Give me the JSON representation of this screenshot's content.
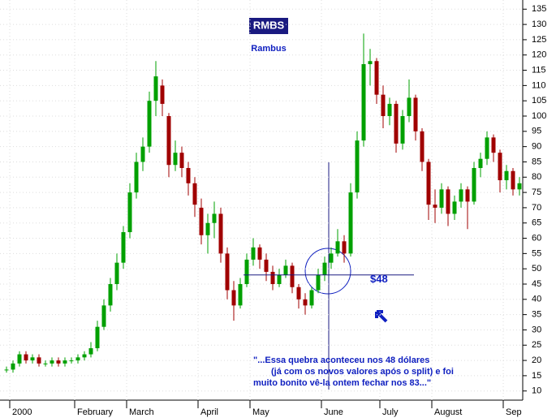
{
  "chart_data": {
    "type": "candlestick",
    "title": "RMBS",
    "subtitle": "Rambus",
    "categories": [
      null,
      "2000",
      null,
      null,
      null,
      null,
      null,
      null,
      null,
      null,
      null,
      "February",
      null,
      null,
      null,
      null,
      null,
      null,
      null,
      "March",
      null,
      null,
      null,
      null,
      null,
      null,
      null,
      null,
      null,
      null,
      "April",
      null,
      null,
      null,
      null,
      null,
      null,
      null,
      "May",
      null,
      null,
      null,
      null,
      null,
      null,
      null,
      null,
      null,
      null,
      "June",
      null,
      null,
      null,
      null,
      null,
      null,
      null,
      null,
      "July",
      null,
      null,
      null,
      null,
      null,
      null,
      null,
      "August",
      null,
      null,
      null,
      null,
      null,
      null,
      null,
      null,
      null,
      null,
      "Sep",
      null,
      null
    ],
    "open": [
      17,
      17,
      19,
      22,
      20,
      21,
      19,
      19,
      20,
      19,
      20,
      20,
      21,
      22,
      24,
      31,
      38,
      45,
      52,
      62,
      75,
      85,
      90,
      105,
      110,
      100,
      84,
      88,
      83,
      78,
      70,
      61,
      65,
      68,
      55,
      43,
      38,
      45,
      53,
      57,
      53,
      49,
      45,
      48,
      51,
      44,
      40,
      38,
      43,
      48,
      52,
      55,
      59,
      55,
      75,
      92,
      117,
      118,
      107,
      100,
      104,
      91,
      100,
      106,
      95,
      85,
      71,
      70,
      76,
      68,
      72,
      76,
      72,
      83,
      86,
      93,
      88,
      79,
      82,
      76
    ],
    "high": [
      18,
      20,
      23,
      23,
      22,
      22,
      20,
      21,
      21,
      21,
      21,
      22,
      23,
      26,
      33,
      40,
      47,
      55,
      64,
      78,
      88,
      93,
      108,
      118,
      112,
      101,
      92,
      90,
      85,
      80,
      73,
      68,
      72,
      70,
      57,
      46,
      47,
      55,
      60,
      58,
      55,
      51,
      50,
      53,
      52,
      45,
      42,
      44,
      50,
      54,
      57,
      63,
      61,
      78,
      95,
      127,
      122,
      119,
      110,
      106,
      105,
      102,
      112,
      107,
      96,
      86,
      76,
      78,
      77,
      74,
      78,
      77,
      85,
      88,
      95,
      94,
      89,
      84,
      83,
      80
    ],
    "low": [
      16,
      16,
      18,
      19,
      19,
      18,
      18,
      18,
      18,
      18,
      19,
      19,
      20,
      21,
      23,
      30,
      36,
      43,
      50,
      60,
      73,
      82,
      88,
      100,
      100,
      80,
      82,
      80,
      74,
      67,
      58,
      55,
      60,
      52,
      40,
      33,
      37,
      44,
      51,
      50,
      46,
      43,
      44,
      47,
      42,
      37,
      35,
      37,
      42,
      46,
      50,
      54,
      52,
      54,
      73,
      90,
      110,
      104,
      96,
      97,
      88,
      89,
      98,
      92,
      82,
      66,
      65,
      68,
      64,
      66,
      70,
      63,
      71,
      80,
      84,
      85,
      75,
      76,
      74,
      74
    ],
    "close": [
      17,
      19,
      22,
      20,
      21,
      19,
      19,
      20,
      19,
      20,
      20,
      21,
      22,
      24,
      31,
      38,
      45,
      52,
      62,
      75,
      85,
      90,
      105,
      113,
      104,
      84,
      88,
      83,
      78,
      71,
      61,
      65,
      68,
      55,
      43,
      38,
      45,
      53,
      57,
      53,
      49,
      45,
      48,
      51,
      44,
      40,
      38,
      43,
      48,
      52,
      55,
      59,
      55,
      75,
      92,
      117,
      118,
      107,
      100,
      104,
      91,
      100,
      106,
      95,
      85,
      71,
      70,
      76,
      68,
      72,
      76,
      72,
      83,
      86,
      93,
      88,
      79,
      82,
      76,
      78
    ],
    "up_color": "#00a000",
    "down_color": "#a00000",
    "ylim": [
      7,
      138
    ],
    "yticks": [
      10,
      15,
      20,
      25,
      30,
      35,
      40,
      45,
      50,
      55,
      60,
      65,
      70,
      75,
      80,
      85,
      90,
      95,
      100,
      105,
      110,
      115,
      120,
      125,
      130,
      135
    ],
    "grid": true,
    "level": {
      "value": 48,
      "label": "$48"
    },
    "annotation": [
      "\"...Essa quebra aconteceu nos 48 dólares",
      "(já com os novos valores após o split) e foi",
      "muito bonito vê-la ontem fechar nos 83...\""
    ]
  }
}
